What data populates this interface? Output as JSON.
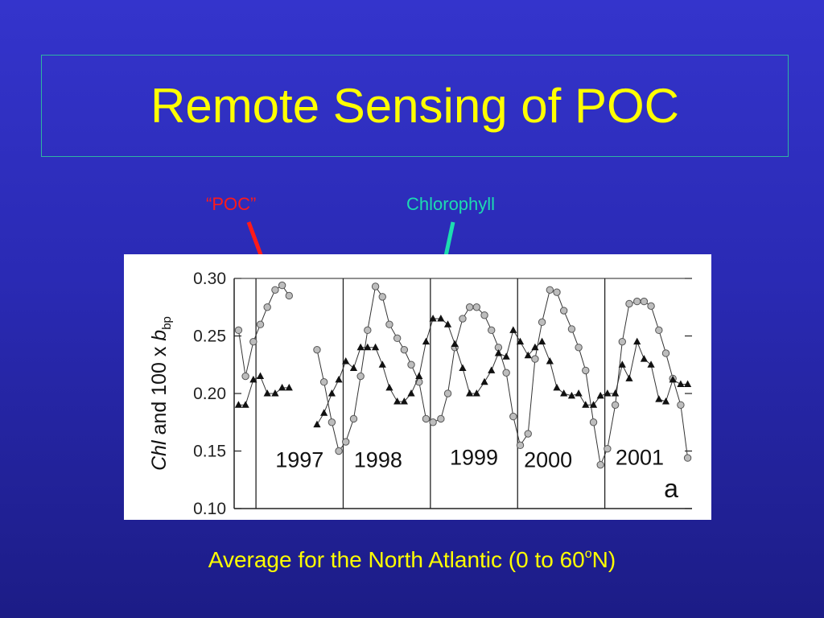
{
  "slide": {
    "title": "Remote Sensing of POC",
    "annotation_poc": "“POC”",
    "annotation_chl": "Chlorophyll",
    "caption_main": "Average for the North Atlantic (0 to 60",
    "caption_deg": "o",
    "caption_tail": "N)"
  },
  "colors": {
    "title": "#ffff00",
    "poc_arrow": "#ff1a1a",
    "chl_arrow": "#1ddcb0"
  },
  "chart_data": {
    "type": "line",
    "ylabel_parts": [
      "Chl",
      "and 100 x ",
      "b",
      "bp"
    ],
    "panel_label": "a",
    "ylim": [
      0.1,
      0.3
    ],
    "yticks": [
      "0.30",
      "0.25",
      "0.20",
      "0.15",
      "0.10"
    ],
    "ytick_values": [
      0.3,
      0.25,
      0.2,
      0.15,
      0.1
    ],
    "xlim": [
      1996.75,
      2002.0
    ],
    "year_boundaries": [
      1997.0,
      1998.0,
      1999.0,
      2000.0,
      2001.0
    ],
    "year_labels": [
      {
        "text": "1997",
        "x": 1997.5,
        "y": 0.136
      },
      {
        "text": "1998",
        "x": 1998.4,
        "y": 0.136
      },
      {
        "text": "1999",
        "x": 1999.5,
        "y": 0.138
      },
      {
        "text": "2000",
        "x": 2000.35,
        "y": 0.136
      },
      {
        "text": "2001",
        "x": 2001.4,
        "y": 0.138
      }
    ],
    "series": [
      {
        "marker": "circle",
        "x": [
          1996.8,
          1996.88,
          1996.97,
          1997.05,
          1997.13,
          1997.22,
          1997.3,
          1997.38,
          1997.7,
          1997.78,
          1997.87,
          1997.95,
          1998.03,
          1998.12,
          1998.2,
          1998.28,
          1998.37,
          1998.45,
          1998.53,
          1998.62,
          1998.7,
          1998.78,
          1998.87,
          1998.95,
          1999.03,
          1999.12,
          1999.2,
          1999.28,
          1999.37,
          1999.45,
          1999.53,
          1999.62,
          1999.7,
          1999.78,
          1999.87,
          1999.95,
          2000.03,
          2000.12,
          2000.2,
          2000.28,
          2000.37,
          2000.45,
          2000.53,
          2000.62,
          2000.7,
          2000.78,
          2000.87,
          2000.95,
          2001.03,
          2001.12,
          2001.2,
          2001.28,
          2001.37,
          2001.45,
          2001.53,
          2001.62,
          2001.7,
          2001.78,
          2001.87,
          2001.95
        ],
        "y": [
          0.255,
          0.215,
          0.245,
          0.26,
          0.275,
          0.29,
          0.294,
          0.285,
          0.238,
          0.21,
          0.175,
          0.15,
          0.158,
          0.178,
          0.215,
          0.255,
          0.293,
          0.284,
          0.26,
          0.248,
          0.238,
          0.225,
          0.21,
          0.178,
          0.175,
          0.178,
          0.2,
          0.24,
          0.265,
          0.275,
          0.275,
          0.268,
          0.255,
          0.24,
          0.218,
          0.18,
          0.155,
          0.165,
          0.23,
          0.262,
          0.29,
          0.288,
          0.272,
          0.256,
          0.24,
          0.22,
          0.175,
          0.138,
          0.152,
          0.19,
          0.245,
          0.278,
          0.28,
          0.28,
          0.276,
          0.255,
          0.235,
          0.213,
          0.19,
          0.144
        ]
      },
      {
        "marker": "triangle",
        "x": [
          1996.8,
          1996.88,
          1996.97,
          1997.05,
          1997.13,
          1997.22,
          1997.3,
          1997.38,
          1997.7,
          1997.78,
          1997.87,
          1997.95,
          1998.03,
          1998.12,
          1998.2,
          1998.28,
          1998.37,
          1998.45,
          1998.53,
          1998.62,
          1998.7,
          1998.78,
          1998.87,
          1998.95,
          1999.03,
          1999.12,
          1999.2,
          1999.28,
          1999.37,
          1999.45,
          1999.53,
          1999.62,
          1999.7,
          1999.78,
          1999.87,
          1999.95,
          2000.03,
          2000.12,
          2000.2,
          2000.28,
          2000.37,
          2000.45,
          2000.53,
          2000.62,
          2000.7,
          2000.78,
          2000.87,
          2000.95,
          2001.03,
          2001.12,
          2001.2,
          2001.28,
          2001.37,
          2001.45,
          2001.53,
          2001.62,
          2001.7,
          2001.78,
          2001.87,
          2001.95
        ],
        "y": [
          0.19,
          0.19,
          0.212,
          0.215,
          0.2,
          0.2,
          0.205,
          0.205,
          0.173,
          0.183,
          0.2,
          0.212,
          0.228,
          0.222,
          0.24,
          0.24,
          0.24,
          0.225,
          0.205,
          0.193,
          0.193,
          0.2,
          0.215,
          0.245,
          0.265,
          0.265,
          0.26,
          0.243,
          0.222,
          0.2,
          0.2,
          0.21,
          0.22,
          0.235,
          0.232,
          0.255,
          0.245,
          0.233,
          0.24,
          0.245,
          0.228,
          0.205,
          0.2,
          0.198,
          0.2,
          0.19,
          0.19,
          0.198,
          0.2,
          0.2,
          0.225,
          0.213,
          0.245,
          0.23,
          0.225,
          0.195,
          0.193,
          0.212,
          0.208,
          0.208
        ]
      }
    ]
  }
}
